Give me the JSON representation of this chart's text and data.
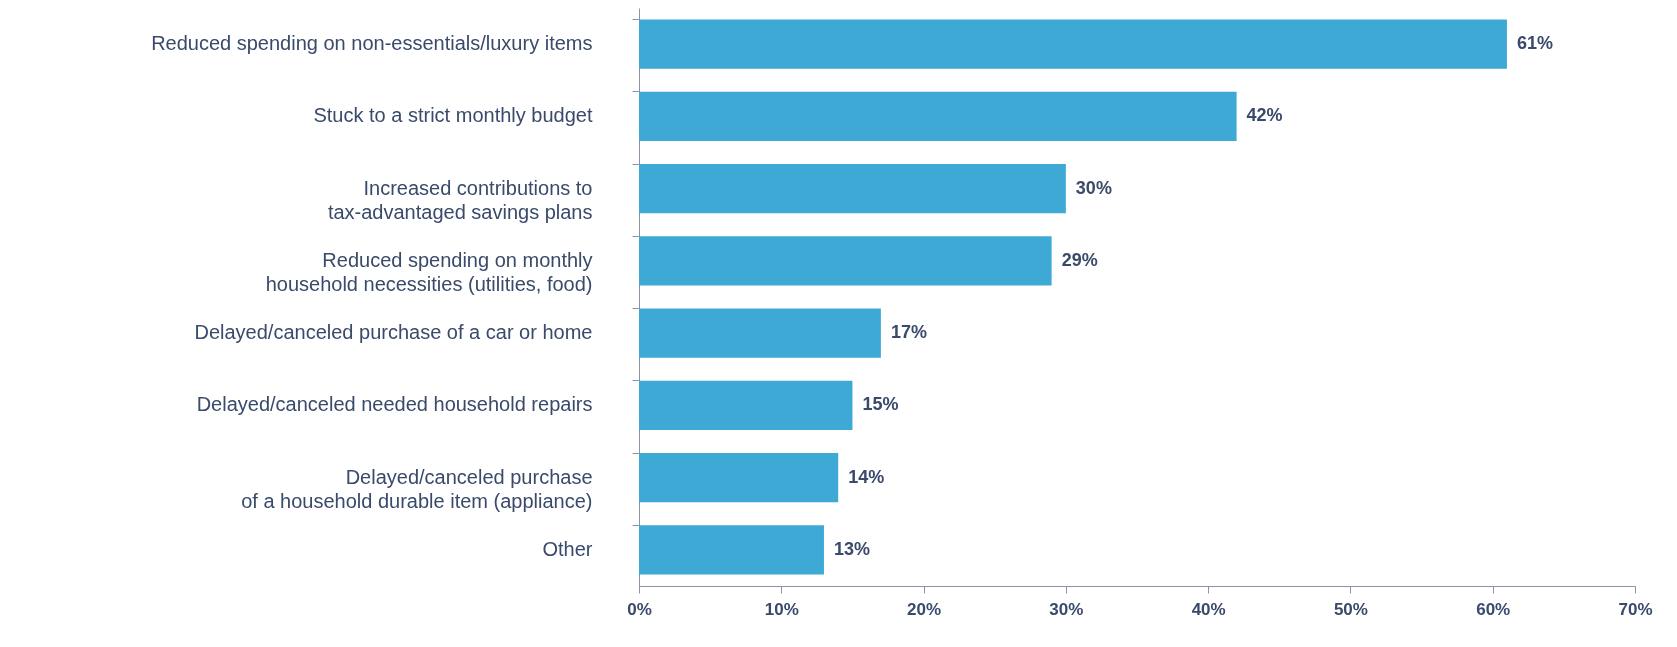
{
  "chart_data": {
    "type": "bar",
    "orientation": "horizontal",
    "categories": [
      "Reduced spending on non-essentials/luxury items",
      "Stuck to a strict monthly budget",
      "Increased contributions to\ntax-advantaged savings plans",
      "Reduced spending on monthly\nhousehold necessities (utilities, food)",
      "Delayed/canceled purchase of a car or home",
      "Delayed/canceled needed household repairs",
      "Delayed/canceled purchase\nof a household durable item (appliance)",
      "Other"
    ],
    "values": [
      61,
      42,
      30,
      29,
      17,
      15,
      14,
      13
    ],
    "value_labels": [
      "61%",
      "42%",
      "30%",
      "29%",
      "17%",
      "15%",
      "14%",
      "13%"
    ],
    "color": "#3fa9d6",
    "xlim": [
      0,
      70
    ],
    "xticks": [
      {
        "value": 0,
        "label": "0%"
      },
      {
        "value": 10,
        "label": "10%"
      },
      {
        "value": 20,
        "label": "20%"
      },
      {
        "value": 30,
        "label": "30%"
      },
      {
        "value": 40,
        "label": "40%"
      },
      {
        "value": 50,
        "label": "50%"
      },
      {
        "value": 60,
        "label": "60%"
      },
      {
        "value": 70,
        "label": "70%"
      }
    ],
    "grid": false
  }
}
